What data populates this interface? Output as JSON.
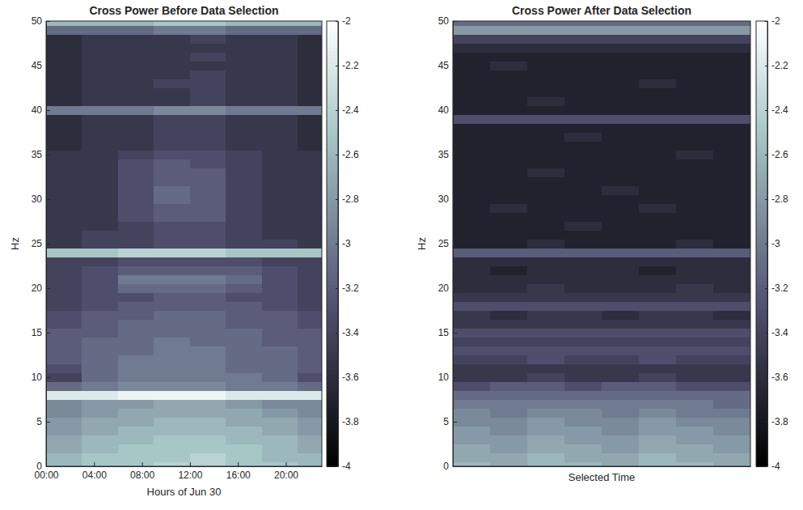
{
  "chart_data": [
    {
      "type": "heatmap",
      "title": "Cross Power Before Data Selection",
      "x_label": "Hours of Jun 30",
      "y_label": "Hz",
      "xlim": [
        0,
        23
      ],
      "ylim": [
        0,
        50
      ],
      "xticks": [
        {
          "value": 0,
          "label": "00:00"
        },
        {
          "value": 4,
          "label": "04:00"
        },
        {
          "value": 8,
          "label": "08:00"
        },
        {
          "value": 12,
          "label": "12:00"
        },
        {
          "value": 16,
          "label": "16:00"
        },
        {
          "value": 20,
          "label": "20:00"
        }
      ],
      "yticks": [
        0,
        5,
        10,
        15,
        20,
        25,
        30,
        35,
        40,
        45,
        50
      ],
      "x_bins": [
        0,
        3,
        6,
        9,
        12,
        15,
        18,
        21,
        23
      ],
      "y_bins": [
        -0.5,
        0.5,
        1.5,
        2.5,
        3.5,
        4.5,
        5.5,
        6.5,
        7.5,
        8.5,
        9.5,
        10.5,
        11.5,
        12.5,
        13.5,
        14.5,
        15.5,
        16.5,
        17.5,
        18.5,
        19.5,
        20.5,
        21.5,
        22.5,
        23.5,
        24.5,
        25.5,
        26.5,
        27.5,
        28.5,
        29.5,
        30.5,
        31.5,
        32.5,
        33.5,
        34.5,
        35.5,
        36.5,
        37.5,
        38.5,
        39.5,
        40.5,
        41.5,
        42.5,
        43.5,
        44.5,
        45.5,
        46.5,
        47.5,
        48.5,
        49.5,
        50.5
      ],
      "values": [
        [
          -2.6,
          -2.5,
          -2.5,
          -2.4,
          -2.4,
          -2.5,
          -2.5,
          -2.6
        ],
        [
          -2.6,
          -2.5,
          -2.5,
          -2.5,
          -2.4,
          -2.5,
          -2.6,
          -2.6
        ],
        [
          -2.7,
          -2.6,
          -2.5,
          -2.5,
          -2.5,
          -2.5,
          -2.6,
          -2.7
        ],
        [
          -2.7,
          -2.6,
          -2.6,
          -2.5,
          -2.5,
          -2.6,
          -2.6,
          -2.7
        ],
        [
          -2.8,
          -2.7,
          -2.6,
          -2.6,
          -2.6,
          -2.6,
          -2.7,
          -2.8
        ],
        [
          -2.8,
          -2.7,
          -2.7,
          -2.6,
          -2.6,
          -2.7,
          -2.7,
          -2.8
        ],
        [
          -2.9,
          -2.8,
          -2.7,
          -2.7,
          -2.7,
          -2.7,
          -2.8,
          -2.9
        ],
        [
          -2.9,
          -2.8,
          -2.8,
          -2.7,
          -2.7,
          -2.8,
          -2.9,
          -2.9
        ],
        [
          -2.2,
          -2.2,
          -2.1,
          -2.1,
          -2.1,
          -2.2,
          -2.2,
          -2.2
        ],
        [
          -3.1,
          -3.0,
          -2.9,
          -2.9,
          -2.9,
          -3.0,
          -3.0,
          -3.1
        ],
        [
          -3.4,
          -3.1,
          -3.0,
          -3.0,
          -3.0,
          -3.0,
          -3.1,
          -3.3
        ],
        [
          -3.3,
          -3.1,
          -3.0,
          -3.0,
          -3.0,
          -3.1,
          -3.1,
          -3.2
        ],
        [
          -3.2,
          -3.1,
          -3.0,
          -3.0,
          -3.0,
          -3.1,
          -3.1,
          -3.2
        ],
        [
          -3.2,
          -3.1,
          -3.1,
          -3.0,
          -3.0,
          -3.1,
          -3.1,
          -3.2
        ],
        [
          -3.2,
          -3.1,
          -3.1,
          -3.0,
          -3.1,
          -3.1,
          -3.2,
          -3.2
        ],
        [
          -3.2,
          -3.2,
          -3.1,
          -3.1,
          -3.1,
          -3.1,
          -3.2,
          -3.2
        ],
        [
          -3.3,
          -3.2,
          -3.1,
          -3.1,
          -3.1,
          -3.2,
          -3.2,
          -3.3
        ],
        [
          -3.3,
          -3.2,
          -3.2,
          -3.1,
          -3.1,
          -3.2,
          -3.2,
          -3.3
        ],
        [
          -3.4,
          -3.3,
          -3.2,
          -3.2,
          -3.2,
          -3.2,
          -3.3,
          -3.4
        ],
        [
          -3.4,
          -3.3,
          -3.3,
          -3.2,
          -3.2,
          -3.3,
          -3.3,
          -3.4
        ],
        [
          -3.4,
          -3.3,
          -3.1,
          -3.1,
          -3.1,
          -3.2,
          -3.3,
          -3.4
        ],
        [
          -3.4,
          -3.3,
          -3.0,
          -3.0,
          -3.0,
          -3.1,
          -3.3,
          -3.4
        ],
        [
          -3.4,
          -3.3,
          -3.2,
          -3.2,
          -3.2,
          -3.2,
          -3.3,
          -3.4
        ],
        [
          -3.4,
          -3.4,
          -3.3,
          -3.3,
          -3.3,
          -3.3,
          -3.4,
          -3.4
        ],
        [
          -2.5,
          -2.5,
          -2.4,
          -2.4,
          -2.4,
          -2.5,
          -2.5,
          -2.5
        ],
        [
          -3.5,
          -3.4,
          -3.4,
          -3.3,
          -3.3,
          -3.4,
          -3.4,
          -3.5
        ],
        [
          -3.5,
          -3.4,
          -3.4,
          -3.3,
          -3.3,
          -3.4,
          -3.5,
          -3.5
        ],
        [
          -3.5,
          -3.5,
          -3.4,
          -3.3,
          -3.3,
          -3.4,
          -3.5,
          -3.5
        ],
        [
          -3.5,
          -3.5,
          -3.3,
          -3.2,
          -3.2,
          -3.4,
          -3.5,
          -3.5
        ],
        [
          -3.5,
          -3.5,
          -3.3,
          -3.2,
          -3.2,
          -3.4,
          -3.5,
          -3.5
        ],
        [
          -3.5,
          -3.5,
          -3.3,
          -3.1,
          -3.2,
          -3.4,
          -3.5,
          -3.5
        ],
        [
          -3.5,
          -3.5,
          -3.3,
          -3.1,
          -3.2,
          -3.4,
          -3.5,
          -3.5
        ],
        [
          -3.5,
          -3.5,
          -3.3,
          -3.2,
          -3.2,
          -3.4,
          -3.5,
          -3.5
        ],
        [
          -3.5,
          -3.5,
          -3.3,
          -3.2,
          -3.2,
          -3.4,
          -3.5,
          -3.5
        ],
        [
          -3.5,
          -3.5,
          -3.3,
          -3.2,
          -3.3,
          -3.4,
          -3.5,
          -3.5
        ],
        [
          -3.5,
          -3.5,
          -3.4,
          -3.3,
          -3.3,
          -3.4,
          -3.5,
          -3.5
        ],
        [
          -3.6,
          -3.5,
          -3.5,
          -3.4,
          -3.4,
          -3.5,
          -3.5,
          -3.6
        ],
        [
          -3.6,
          -3.5,
          -3.5,
          -3.4,
          -3.4,
          -3.5,
          -3.5,
          -3.6
        ],
        [
          -3.6,
          -3.5,
          -3.5,
          -3.4,
          -3.4,
          -3.5,
          -3.5,
          -3.6
        ],
        [
          -3.6,
          -3.5,
          -3.5,
          -3.4,
          -3.4,
          -3.5,
          -3.5,
          -3.6
        ],
        [
          -3.0,
          -3.0,
          -3.0,
          -2.9,
          -2.9,
          -3.0,
          -3.0,
          -3.0
        ],
        [
          -3.6,
          -3.5,
          -3.5,
          -3.5,
          -3.4,
          -3.5,
          -3.5,
          -3.6
        ],
        [
          -3.6,
          -3.5,
          -3.5,
          -3.5,
          -3.4,
          -3.5,
          -3.5,
          -3.6
        ],
        [
          -3.6,
          -3.5,
          -3.5,
          -3.4,
          -3.4,
          -3.5,
          -3.5,
          -3.6
        ],
        [
          -3.6,
          -3.5,
          -3.5,
          -3.5,
          -3.4,
          -3.5,
          -3.5,
          -3.6
        ],
        [
          -3.6,
          -3.5,
          -3.5,
          -3.5,
          -3.5,
          -3.5,
          -3.5,
          -3.6
        ],
        [
          -3.6,
          -3.5,
          -3.5,
          -3.5,
          -3.4,
          -3.5,
          -3.5,
          -3.6
        ],
        [
          -3.6,
          -3.5,
          -3.5,
          -3.5,
          -3.5,
          -3.5,
          -3.5,
          -3.6
        ],
        [
          -3.6,
          -3.5,
          -3.5,
          -3.5,
          -3.4,
          -3.5,
          -3.5,
          -3.6
        ],
        [
          -3.1,
          -3.1,
          -3.1,
          -3.0,
          -3.0,
          -3.1,
          -3.1,
          -3.1
        ],
        [
          -2.6,
          -2.6,
          -2.6,
          -2.5,
          -2.5,
          -2.6,
          -2.6,
          -2.6
        ]
      ],
      "colorbar": {
        "range": [
          -4,
          -2
        ],
        "ticks": [
          -2,
          -2.2,
          -2.4,
          -2.6,
          -2.8,
          -3,
          -3.2,
          -3.4,
          -3.6,
          -3.8,
          -4
        ]
      }
    },
    {
      "type": "heatmap",
      "title": "Cross Power After Data Selection",
      "x_label": "Selected Time",
      "y_label": "Hz",
      "xlim": [
        0,
        8
      ],
      "ylim": [
        0,
        50
      ],
      "tick_labels": "y",
      "yticks": [
        0,
        5,
        10,
        15,
        20,
        25,
        30,
        35,
        40,
        45,
        50
      ],
      "x_bins": [
        0,
        1,
        2,
        3,
        4,
        5,
        6,
        7,
        8
      ],
      "y_bins": [
        -0.5,
        0.5,
        1.5,
        2.5,
        3.5,
        4.5,
        5.5,
        6.5,
        7.5,
        8.5,
        9.5,
        10.5,
        11.5,
        12.5,
        13.5,
        14.5,
        15.5,
        16.5,
        17.5,
        18.5,
        19.5,
        20.5,
        21.5,
        22.5,
        23.5,
        24.5,
        25.5,
        26.5,
        27.5,
        28.5,
        29.5,
        30.5,
        31.5,
        32.5,
        33.5,
        34.5,
        35.5,
        36.5,
        37.5,
        38.5,
        39.5,
        40.5,
        41.5,
        42.5,
        43.5,
        44.5,
        45.5,
        46.5,
        47.5,
        48.5,
        49.5,
        50.5
      ],
      "values": [
        [
          -2.6,
          -2.7,
          -2.6,
          -2.6,
          -2.7,
          -2.6,
          -2.6,
          -2.7
        ],
        [
          -2.7,
          -2.7,
          -2.6,
          -2.7,
          -2.7,
          -2.6,
          -2.7,
          -2.7
        ],
        [
          -2.7,
          -2.8,
          -2.7,
          -2.7,
          -2.8,
          -2.7,
          -2.7,
          -2.8
        ],
        [
          -2.8,
          -2.8,
          -2.7,
          -2.8,
          -2.8,
          -2.7,
          -2.8,
          -2.8
        ],
        [
          -2.8,
          -2.9,
          -2.8,
          -2.8,
          -2.9,
          -2.8,
          -2.8,
          -2.9
        ],
        [
          -2.9,
          -2.9,
          -2.8,
          -2.9,
          -2.9,
          -2.8,
          -2.9,
          -2.9
        ],
        [
          -2.9,
          -3.0,
          -2.9,
          -2.9,
          -3.0,
          -2.9,
          -3.0,
          -3.0
        ],
        [
          -3.0,
          -3.0,
          -3.0,
          -3.0,
          -3.0,
          -3.0,
          -3.0,
          -3.1
        ],
        [
          -3.1,
          -3.1,
          -3.1,
          -3.1,
          -3.1,
          -3.1,
          -3.1,
          -3.1
        ],
        [
          -3.3,
          -3.2,
          -3.2,
          -3.3,
          -3.2,
          -3.2,
          -3.3,
          -3.3
        ],
        [
          -3.5,
          -3.5,
          -3.4,
          -3.5,
          -3.5,
          -3.4,
          -3.5,
          -3.5
        ],
        [
          -3.5,
          -3.5,
          -3.5,
          -3.5,
          -3.5,
          -3.5,
          -3.5,
          -3.5
        ],
        [
          -3.4,
          -3.4,
          -3.3,
          -3.4,
          -3.4,
          -3.3,
          -3.4,
          -3.4
        ],
        [
          -3.3,
          -3.3,
          -3.3,
          -3.3,
          -3.3,
          -3.3,
          -3.3,
          -3.3
        ],
        [
          -3.4,
          -3.4,
          -3.4,
          -3.4,
          -3.4,
          -3.4,
          -3.4,
          -3.4
        ],
        [
          -3.3,
          -3.3,
          -3.3,
          -3.3,
          -3.3,
          -3.3,
          -3.3,
          -3.3
        ],
        [
          -3.5,
          -3.5,
          -3.5,
          -3.5,
          -3.5,
          -3.5,
          -3.5,
          -3.5
        ],
        [
          -3.5,
          -3.6,
          -3.5,
          -3.5,
          -3.6,
          -3.5,
          -3.5,
          -3.6
        ],
        [
          -3.3,
          -3.3,
          -3.3,
          -3.3,
          -3.3,
          -3.3,
          -3.3,
          -3.3
        ],
        [
          -3.5,
          -3.5,
          -3.5,
          -3.5,
          -3.5,
          -3.5,
          -3.5,
          -3.5
        ],
        [
          -3.6,
          -3.6,
          -3.5,
          -3.6,
          -3.6,
          -3.6,
          -3.5,
          -3.6
        ],
        [
          -3.6,
          -3.6,
          -3.6,
          -3.6,
          -3.6,
          -3.6,
          -3.6,
          -3.6
        ],
        [
          -3.6,
          -3.7,
          -3.6,
          -3.6,
          -3.6,
          -3.7,
          -3.6,
          -3.6
        ],
        [
          -3.6,
          -3.6,
          -3.6,
          -3.6,
          -3.6,
          -3.6,
          -3.6,
          -3.6
        ],
        [
          -3.2,
          -3.2,
          -3.2,
          -3.2,
          -3.2,
          -3.2,
          -3.2,
          -3.2
        ],
        [
          -3.7,
          -3.7,
          -3.6,
          -3.7,
          -3.7,
          -3.7,
          -3.6,
          -3.7
        ],
        [
          -3.7,
          -3.7,
          -3.7,
          -3.7,
          -3.7,
          -3.7,
          -3.7,
          -3.7
        ],
        [
          -3.7,
          -3.7,
          -3.7,
          -3.6,
          -3.7,
          -3.7,
          -3.7,
          -3.7
        ],
        [
          -3.7,
          -3.7,
          -3.7,
          -3.7,
          -3.7,
          -3.7,
          -3.7,
          -3.7
        ],
        [
          -3.7,
          -3.6,
          -3.7,
          -3.7,
          -3.7,
          -3.6,
          -3.7,
          -3.7
        ],
        [
          -3.7,
          -3.7,
          -3.7,
          -3.7,
          -3.7,
          -3.7,
          -3.7,
          -3.7
        ],
        [
          -3.7,
          -3.7,
          -3.7,
          -3.7,
          -3.6,
          -3.7,
          -3.7,
          -3.7
        ],
        [
          -3.7,
          -3.7,
          -3.7,
          -3.7,
          -3.7,
          -3.7,
          -3.7,
          -3.7
        ],
        [
          -3.7,
          -3.7,
          -3.6,
          -3.7,
          -3.7,
          -3.7,
          -3.7,
          -3.7
        ],
        [
          -3.7,
          -3.7,
          -3.7,
          -3.7,
          -3.7,
          -3.7,
          -3.7,
          -3.7
        ],
        [
          -3.7,
          -3.7,
          -3.7,
          -3.7,
          -3.7,
          -3.7,
          -3.6,
          -3.7
        ],
        [
          -3.7,
          -3.7,
          -3.7,
          -3.7,
          -3.7,
          -3.7,
          -3.7,
          -3.7
        ],
        [
          -3.7,
          -3.7,
          -3.7,
          -3.6,
          -3.7,
          -3.7,
          -3.7,
          -3.7
        ],
        [
          -3.7,
          -3.7,
          -3.7,
          -3.7,
          -3.7,
          -3.7,
          -3.7,
          -3.7
        ],
        [
          -3.3,
          -3.3,
          -3.3,
          -3.3,
          -3.3,
          -3.3,
          -3.3,
          -3.3
        ],
        [
          -3.7,
          -3.7,
          -3.7,
          -3.7,
          -3.7,
          -3.7,
          -3.7,
          -3.7
        ],
        [
          -3.7,
          -3.7,
          -3.6,
          -3.7,
          -3.7,
          -3.7,
          -3.7,
          -3.7
        ],
        [
          -3.7,
          -3.7,
          -3.7,
          -3.7,
          -3.7,
          -3.7,
          -3.7,
          -3.7
        ],
        [
          -3.7,
          -3.7,
          -3.7,
          -3.7,
          -3.7,
          -3.6,
          -3.7,
          -3.7
        ],
        [
          -3.7,
          -3.7,
          -3.7,
          -3.7,
          -3.7,
          -3.7,
          -3.7,
          -3.7
        ],
        [
          -3.7,
          -3.6,
          -3.7,
          -3.7,
          -3.7,
          -3.7,
          -3.7,
          -3.7
        ],
        [
          -3.7,
          -3.7,
          -3.7,
          -3.7,
          -3.7,
          -3.7,
          -3.7,
          -3.7
        ],
        [
          -3.6,
          -3.6,
          -3.6,
          -3.6,
          -3.6,
          -3.6,
          -3.6,
          -3.6
        ],
        [
          -3.4,
          -3.4,
          -3.4,
          -3.4,
          -3.4,
          -3.4,
          -3.4,
          -3.4
        ],
        [
          -2.8,
          -2.8,
          -2.8,
          -2.8,
          -2.8,
          -2.8,
          -2.8,
          -2.8
        ],
        [
          -3.1,
          -3.1,
          -3.1,
          -3.1,
          -3.1,
          -3.1,
          -3.1,
          -3.1
        ]
      ],
      "colorbar": {
        "range": [
          -4,
          -2
        ],
        "ticks": [
          -2,
          -2.2,
          -2.4,
          -2.6,
          -2.8,
          -3,
          -3.2,
          -3.4,
          -3.6,
          -3.8,
          -4
        ]
      }
    }
  ]
}
